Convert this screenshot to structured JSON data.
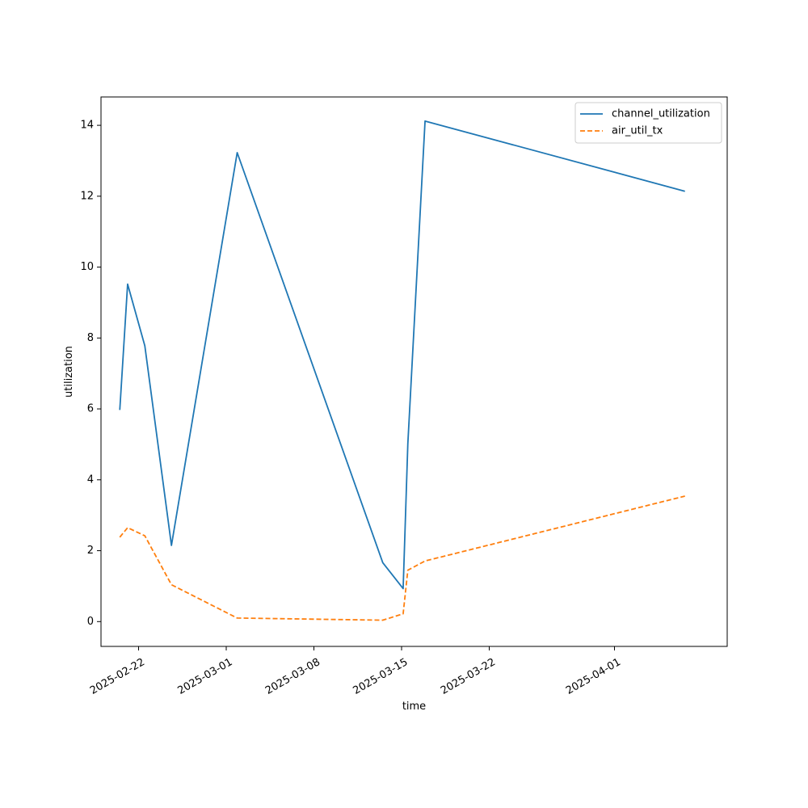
{
  "chart_data": {
    "type": "line",
    "title": "",
    "xlabel": "time",
    "ylabel": "utilization",
    "x_type": "date",
    "xlim": [
      "2025-02-19",
      "2025-04-10"
    ],
    "ylim": [
      -0.7,
      14.8
    ],
    "x_ticks": [
      "2025-02-22",
      "2025-03-01",
      "2025-03-08",
      "2025-03-15",
      "2025-03-22",
      "2025-04-01"
    ],
    "y_ticks": [
      0,
      2,
      4,
      6,
      8,
      10,
      12,
      14
    ],
    "grid": false,
    "legend_position": "top-right",
    "series": [
      {
        "name": "channel_utilization",
        "color": "#1f77b4",
        "line_style": "solid",
        "points": [
          {
            "x": "2025-02-20T12:00",
            "y": 5.97
          },
          {
            "x": "2025-02-21T03:00",
            "y": 9.52
          },
          {
            "x": "2025-02-22T12:00",
            "y": 7.78
          },
          {
            "x": "2025-02-24T15:00",
            "y": 2.15
          },
          {
            "x": "2025-03-01T21:00",
            "y": 13.23
          },
          {
            "x": "2025-03-13T12:00",
            "y": 1.66
          },
          {
            "x": "2025-03-15T03:00",
            "y": 0.93
          },
          {
            "x": "2025-03-15T12:00",
            "y": 5.02
          },
          {
            "x": "2025-03-16T21:00",
            "y": 14.12
          },
          {
            "x": "2025-04-06T15:00",
            "y": 12.14
          }
        ]
      },
      {
        "name": "air_util_tx",
        "color": "#ff7f0e",
        "line_style": "dashed",
        "points": [
          {
            "x": "2025-02-20T12:00",
            "y": 2.38
          },
          {
            "x": "2025-02-21T03:00",
            "y": 2.65
          },
          {
            "x": "2025-02-22T12:00",
            "y": 2.42
          },
          {
            "x": "2025-02-24T15:00",
            "y": 1.04
          },
          {
            "x": "2025-03-01T21:00",
            "y": 0.1
          },
          {
            "x": "2025-03-13T12:00",
            "y": 0.04
          },
          {
            "x": "2025-03-15T03:00",
            "y": 0.22
          },
          {
            "x": "2025-03-15T12:00",
            "y": 1.45
          },
          {
            "x": "2025-03-16T21:00",
            "y": 1.71
          },
          {
            "x": "2025-04-06T15:00",
            "y": 3.54
          }
        ]
      }
    ]
  }
}
